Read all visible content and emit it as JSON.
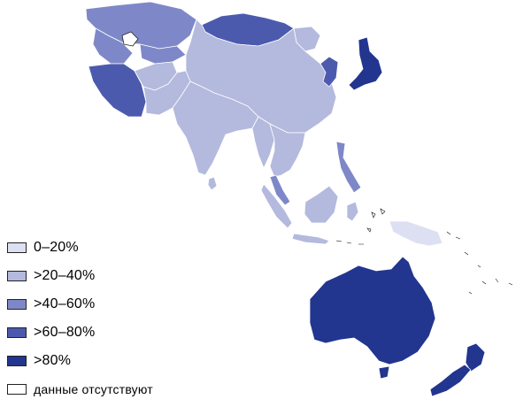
{
  "legend": {
    "items": [
      {
        "label": "0–20%",
        "color": "#dde0f2"
      },
      {
        "label": ">20–40%",
        "color": "#b4b9de"
      },
      {
        "label": ">40–60%",
        "color": "#7e88c8"
      },
      {
        "label": ">60–80%",
        "color": "#4c5aae"
      },
      {
        "label": ">80%",
        "color": "#22358f"
      },
      {
        "label": "данные отсутствуют",
        "color": "#ffffff"
      }
    ]
  },
  "colors": {
    "c0": "#dde0f2",
    "c1": "#b4b9de",
    "c2": "#7e88c8",
    "c3": "#4c5aae",
    "c4": "#22358f",
    "nodata": "#ffffff",
    "border": "#ffffff"
  }
}
